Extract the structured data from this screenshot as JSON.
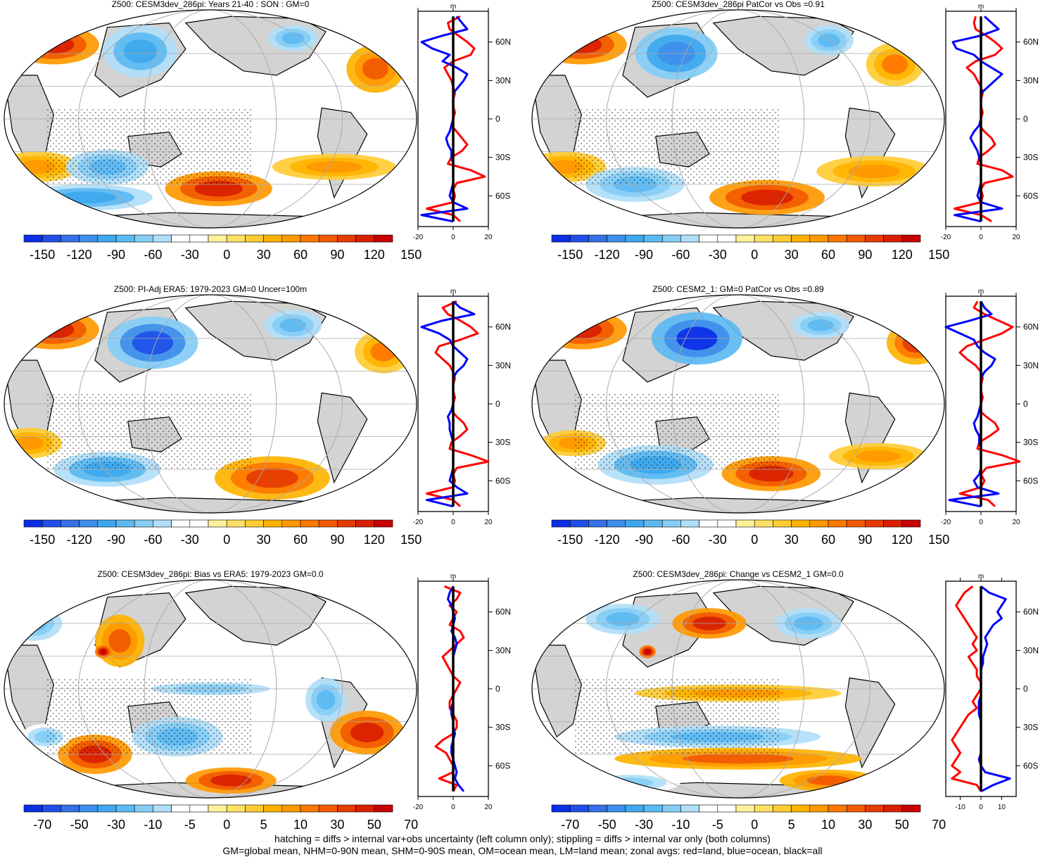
{
  "footer": {
    "line1": "hatching = diffs > internal var+obs uncertainty (left column only); stippling = diffs > internal var only (both columns)",
    "line2": "GM=global mean, NHM=0-90N mean, SHM=0-90S mean, OM=ocean mean, LM=land mean; zonal avgs: red=land, blue=ocean, black=all"
  },
  "colors": {
    "land": "#d3d3d3",
    "zonal_land": "#ff0000",
    "zonal_ocean": "#0000ff",
    "zonal_all": "#000000",
    "palette": [
      "#0a2ee6",
      "#1f4fe8",
      "#3570e8",
      "#3f8eea",
      "#3ea8ee",
      "#5cbaf2",
      "#86cdf5",
      "#b0def8",
      "#ffffff",
      "#ffffff",
      "#fff19c",
      "#ffe066",
      "#ffcc33",
      "#ffb300",
      "#ff9900",
      "#ff7700",
      "#f25a00",
      "#e63b00",
      "#d91f00",
      "#c80000"
    ]
  },
  "chart_data": [
    {
      "type": "heatmap",
      "title": "Z500: CESM3dev_286pi: Years 21-40 : SON : GM=0",
      "colorbar_labels": [
        "-150",
        "-120",
        "-90",
        "-60",
        "-30",
        "0",
        "30",
        "60",
        "90",
        "120",
        "150"
      ],
      "zonal": {
        "unit": "m",
        "xlim": [
          -20,
          20
        ],
        "xticks": [
          "-20",
          "0",
          "20"
        ],
        "lat_ticks": [
          "60N",
          "30N",
          "0",
          "30S",
          "60S"
        ],
        "lat": [
          80,
          75,
          70,
          65,
          60,
          55,
          50,
          45,
          40,
          35,
          30,
          25,
          20,
          15,
          10,
          5,
          0,
          -5,
          -10,
          -15,
          -20,
          -25,
          -30,
          -35,
          -40,
          -45,
          -50,
          -55,
          -60,
          -65,
          -70,
          -75,
          -80
        ],
        "land": [
          4,
          -3,
          -2,
          3,
          8,
          12,
          10,
          0,
          -5,
          -3,
          -1,
          0,
          1,
          0,
          0,
          1,
          0,
          -1,
          2,
          5,
          8,
          5,
          -1,
          -3,
          10,
          18,
          2,
          0,
          1,
          0,
          -15,
          0,
          4
        ],
        "ocean": [
          2,
          5,
          8,
          -6,
          -18,
          -12,
          -2,
          -6,
          2,
          8,
          6,
          3,
          0,
          0,
          0,
          0,
          0,
          -1,
          -2,
          -4,
          -3,
          -1,
          -1,
          0,
          0,
          0,
          0,
          -1,
          -2,
          0,
          8,
          -18,
          0
        ],
        "all": [
          0,
          0,
          0,
          0,
          0,
          0,
          0,
          0,
          0,
          0,
          0,
          0,
          0,
          0,
          0,
          0,
          0,
          0,
          0,
          0,
          0,
          0,
          0,
          0,
          0,
          0,
          0,
          0,
          0,
          0,
          0,
          0,
          0
        ]
      }
    },
    {
      "type": "heatmap",
      "title": "Z500: CESM3dev_286pi PatCor vs Obs =0.91",
      "colorbar_labels": [
        "-150",
        "-120",
        "-90",
        "-60",
        "-30",
        "0",
        "30",
        "60",
        "90",
        "120",
        "150"
      ],
      "zonal": {
        "unit": "m",
        "xlim": [
          -20,
          20
        ],
        "xticks": [
          "-20",
          "0",
          "20"
        ],
        "lat_ticks": [
          "60N",
          "30N",
          "0",
          "30S",
          "60S"
        ],
        "lat": [
          80,
          75,
          70,
          65,
          60,
          55,
          50,
          45,
          40,
          35,
          30,
          25,
          20,
          15,
          10,
          5,
          0,
          -5,
          -10,
          -15,
          -20,
          -25,
          -30,
          -35,
          -40,
          -45,
          -50,
          -55,
          -60,
          -65,
          -70,
          -75,
          -80
        ],
        "land": [
          -3,
          -4,
          -3,
          3,
          8,
          12,
          8,
          -3,
          -8,
          -4,
          -2,
          0,
          1,
          0,
          0,
          1,
          0,
          -1,
          2,
          6,
          8,
          4,
          -1,
          -2,
          12,
          18,
          2,
          0,
          1,
          0,
          -15,
          0,
          6
        ],
        "ocean": [
          2,
          6,
          10,
          0,
          -16,
          -14,
          -4,
          0,
          6,
          12,
          8,
          4,
          0,
          0,
          0,
          0,
          0,
          -1,
          -4,
          -6,
          -4,
          -2,
          -1,
          0,
          0,
          0,
          0,
          -1,
          -2,
          0,
          12,
          -15,
          0
        ],
        "all": [
          0,
          0,
          0,
          0,
          0,
          0,
          0,
          0,
          0,
          0,
          0,
          0,
          0,
          0,
          0,
          0,
          0,
          0,
          0,
          0,
          0,
          0,
          0,
          0,
          0,
          0,
          0,
          0,
          0,
          0,
          0,
          0,
          0
        ]
      }
    },
    {
      "type": "heatmap",
      "title": "Z500: PI-Adj ERA5: 1979-2023 GM=0 Uncer=100m",
      "colorbar_labels": [
        "-150",
        "-120",
        "-90",
        "-60",
        "-30",
        "0",
        "30",
        "60",
        "90",
        "120",
        "150"
      ],
      "zonal": {
        "unit": "m",
        "xlim": [
          -20,
          20
        ],
        "xticks": [
          "-20",
          "0",
          "20"
        ],
        "lat_ticks": [
          "60N",
          "30N",
          "0",
          "30S",
          "60S"
        ],
        "lat": [
          80,
          75,
          70,
          65,
          60,
          55,
          50,
          45,
          40,
          35,
          30,
          25,
          20,
          15,
          10,
          5,
          0,
          -5,
          -10,
          -15,
          -20,
          -25,
          -30,
          -35,
          -40,
          -45,
          -50,
          -55,
          -60,
          -65,
          -70,
          -75,
          -80
        ],
        "land": [
          2,
          -6,
          -3,
          4,
          10,
          14,
          4,
          -8,
          -10,
          -6,
          -2,
          0,
          1,
          0,
          0,
          1,
          0,
          -1,
          2,
          6,
          8,
          4,
          -1,
          -2,
          10,
          20,
          2,
          0,
          1,
          0,
          -15,
          0,
          4
        ],
        "ocean": [
          0,
          4,
          12,
          -6,
          -18,
          -8,
          -2,
          0,
          4,
          8,
          6,
          2,
          0,
          0,
          0,
          0,
          0,
          -1,
          -3,
          -2,
          -2,
          -1,
          0,
          0,
          0,
          0,
          0,
          -1,
          -2,
          2,
          8,
          -15,
          0
        ],
        "all": [
          0,
          0,
          0,
          0,
          0,
          0,
          0,
          0,
          0,
          0,
          0,
          0,
          0,
          0,
          0,
          0,
          0,
          0,
          0,
          0,
          0,
          0,
          0,
          0,
          0,
          0,
          0,
          0,
          0,
          0,
          0,
          0,
          0
        ]
      }
    },
    {
      "type": "heatmap",
      "title": "Z500: CESM2_1: GM=0 PatCor vs Obs =0.89",
      "colorbar_labels": [
        "-150",
        "-120",
        "-90",
        "-60",
        "-30",
        "0",
        "30",
        "60",
        "90",
        "120",
        "150"
      ],
      "zonal": {
        "unit": "m",
        "xlim": [
          -20,
          20
        ],
        "xticks": [
          "-20",
          "0",
          "20"
        ],
        "lat_ticks": [
          "60N",
          "30N",
          "0",
          "30S",
          "60S"
        ],
        "lat": [
          80,
          75,
          70,
          65,
          60,
          55,
          50,
          45,
          40,
          35,
          30,
          25,
          20,
          15,
          10,
          5,
          0,
          -5,
          -10,
          -15,
          -20,
          -25,
          -30,
          -35,
          -40,
          -45,
          -50,
          -55,
          -60,
          -65,
          -70,
          -75,
          -80
        ],
        "land": [
          -2,
          -4,
          2,
          10,
          18,
          12,
          2,
          -8,
          -12,
          -8,
          -3,
          0,
          1,
          0,
          0,
          1,
          0,
          -1,
          3,
          8,
          10,
          5,
          -1,
          -2,
          12,
          22,
          3,
          0,
          2,
          0,
          -12,
          4,
          8
        ],
        "ocean": [
          0,
          2,
          6,
          -6,
          -20,
          -12,
          -4,
          -2,
          2,
          8,
          6,
          2,
          0,
          0,
          0,
          0,
          0,
          -1,
          -2,
          -4,
          -3,
          -1,
          -1,
          0,
          0,
          0,
          0,
          -1,
          -4,
          -2,
          10,
          -18,
          0
        ],
        "all": [
          0,
          0,
          0,
          0,
          0,
          0,
          0,
          0,
          0,
          0,
          0,
          0,
          0,
          0,
          0,
          0,
          0,
          0,
          0,
          0,
          0,
          0,
          0,
          0,
          0,
          0,
          0,
          0,
          0,
          0,
          0,
          0,
          0
        ]
      }
    },
    {
      "type": "heatmap",
      "title": "Z500: CESM3dev_286pi: Bias vs ERA5: 1979-2023  GM=0.0",
      "colorbar_labels": [
        "-70",
        "-50",
        "-30",
        "-10",
        "-5",
        "0",
        "5",
        "10",
        "30",
        "50",
        "70"
      ],
      "zonal": {
        "unit": "m",
        "xlim": [
          -20,
          20
        ],
        "xticks": [
          "-20",
          "0",
          "20"
        ],
        "lat_ticks": [
          "60N",
          "30N",
          "0",
          "30S",
          "60S"
        ],
        "lat": [
          80,
          75,
          70,
          65,
          60,
          55,
          50,
          45,
          40,
          35,
          30,
          25,
          20,
          15,
          10,
          5,
          0,
          -5,
          -10,
          -15,
          -20,
          -25,
          -30,
          -35,
          -40,
          -45,
          -50,
          -55,
          -60,
          -65,
          -70,
          -75,
          -80
        ],
        "land": [
          -5,
          4,
          2,
          -2,
          2,
          0,
          -2,
          4,
          6,
          2,
          -2,
          -6,
          -4,
          -2,
          0,
          4,
          2,
          0,
          -2,
          -2,
          0,
          2,
          2,
          0,
          -6,
          -10,
          -4,
          -2,
          0,
          0,
          -8,
          2,
          0
        ],
        "ocean": [
          0,
          -2,
          -3,
          -1,
          0,
          1,
          0,
          -1,
          1,
          2,
          1,
          0,
          0,
          0,
          0,
          0,
          0,
          0,
          0,
          -1,
          -1,
          0,
          0,
          1,
          0,
          -1,
          -1,
          0,
          1,
          2,
          1,
          3,
          6
        ],
        "all": [
          0,
          0,
          0,
          0,
          0,
          0,
          0,
          0,
          0,
          0,
          0,
          0,
          0,
          0,
          0,
          0,
          0,
          0,
          0,
          0,
          0,
          0,
          0,
          0,
          0,
          0,
          0,
          0,
          0,
          0,
          0,
          0,
          0
        ]
      }
    },
    {
      "type": "heatmap",
      "title": "Z500: CESM3dev_286pi: Change vs CESM2_1 GM=0.0",
      "colorbar_labels": [
        "-70",
        "-50",
        "-30",
        "-10",
        "-5",
        "0",
        "5",
        "10",
        "30",
        "50",
        "70"
      ],
      "zonal": {
        "unit": "m",
        "xlim": [
          -17,
          17
        ],
        "xticks": [
          "-10",
          "0",
          "10"
        ],
        "lat_ticks": [
          "60N",
          "30N",
          "0",
          "30S",
          "60S"
        ],
        "lat": [
          80,
          75,
          70,
          65,
          60,
          55,
          50,
          45,
          40,
          35,
          30,
          25,
          20,
          15,
          10,
          5,
          0,
          -5,
          -10,
          -15,
          -20,
          -25,
          -30,
          -35,
          -40,
          -45,
          -50,
          -55,
          -60,
          -65,
          -70,
          -75,
          -80
        ],
        "land": [
          -4,
          -8,
          -10,
          -12,
          -10,
          -8,
          -6,
          -4,
          -2,
          -4,
          -2,
          -6,
          -4,
          -2,
          -2,
          0,
          0,
          -2,
          -4,
          -2,
          -6,
          -8,
          -10,
          -12,
          -14,
          -12,
          -10,
          -12,
          -14,
          -10,
          -14,
          -2,
          0
        ],
        "ocean": [
          0,
          4,
          12,
          10,
          8,
          10,
          6,
          4,
          2,
          3,
          2,
          1,
          1,
          0,
          0,
          0,
          0,
          0,
          -1,
          -1,
          -1,
          0,
          0,
          0,
          0,
          0,
          0,
          -1,
          0,
          2,
          14,
          6,
          0
        ],
        "all": [
          0,
          0,
          0,
          0,
          0,
          0,
          0,
          0,
          0,
          0,
          0,
          0,
          0,
          0,
          0,
          0,
          0,
          0,
          0,
          0,
          0,
          0,
          0,
          0,
          0,
          0,
          0,
          0,
          0,
          0,
          0,
          0,
          0
        ]
      }
    }
  ]
}
